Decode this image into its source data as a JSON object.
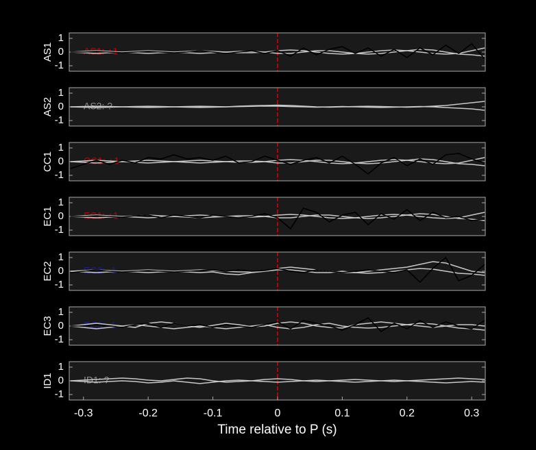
{
  "chart_data": [
    {
      "type": "line",
      "ylabel": "AS1",
      "annotation": "AS1: +1",
      "annotation_color": "#c00000",
      "vline": 0,
      "vline_color": "#dd0000",
      "xlim": [
        -0.322,
        0.321
      ],
      "ylim": [
        -1.4,
        1.4
      ],
      "yticks": [
        -1,
        0,
        1
      ],
      "x": [
        -0.32,
        -0.3,
        -0.28,
        -0.26,
        -0.24,
        -0.22,
        -0.2,
        -0.18,
        -0.16,
        -0.14,
        -0.12,
        -0.1,
        -0.08,
        -0.06,
        -0.04,
        -0.02,
        0,
        0.02,
        0.04,
        0.06,
        0.08,
        0.1,
        0.12,
        0.14,
        0.16,
        0.18,
        0.2,
        0.22,
        0.24,
        0.26,
        0.28,
        0.3,
        0.32
      ],
      "series": [
        {
          "color": "#c8c8c8",
          "values": [
            0,
            0.05,
            0.1,
            0.05,
            0,
            -0.05,
            -0.1,
            -0.05,
            0,
            0.05,
            0.1,
            0.05,
            0,
            -0.05,
            -0.05,
            0,
            0.1,
            0.15,
            0.1,
            0,
            -0.1,
            -0.15,
            -0.1,
            0,
            0.1,
            0.15,
            0.1,
            0,
            -0.1,
            -0.15,
            -0.1,
            0.1,
            0.3
          ]
        },
        {
          "color": "#c8c8c8",
          "values": [
            0,
            -0.05,
            -0.1,
            -0.05,
            0,
            0.05,
            0.1,
            0.05,
            0,
            -0.05,
            -0.1,
            -0.05,
            0,
            0.05,
            0.05,
            0,
            -0.1,
            -0.1,
            0,
            0.1,
            0.1,
            0,
            -0.1,
            -0.15,
            -0.1,
            0,
            0.1,
            0.2,
            0.15,
            0,
            -0.15,
            -0.2,
            -0.3
          ]
        },
        {
          "color": "#000000",
          "values": [
            0,
            0,
            0.05,
            0,
            -0.05,
            0,
            0.05,
            0,
            -0.05,
            0,
            0.1,
            0,
            -0.1,
            0,
            0.1,
            -0.1,
            0.1,
            -0.3,
            0.3,
            -0.2,
            0.2,
            0.4,
            -0.1,
            0.3,
            -0.3,
            0.2,
            -0.4,
            0.3,
            -0.2,
            0.5,
            -0.1,
            0.6,
            -0.5
          ]
        }
      ]
    },
    {
      "type": "line",
      "ylabel": "AS2",
      "annotation": "AS2: ?",
      "annotation_color": "#8c8c8c",
      "vline": 0,
      "vline_color": "#dd0000",
      "xlim": [
        -0.322,
        0.321
      ],
      "ylim": [
        -1.4,
        1.4
      ],
      "yticks": [
        -1,
        0,
        1
      ],
      "x": [
        -0.32,
        -0.3,
        -0.28,
        -0.26,
        -0.24,
        -0.22,
        -0.2,
        -0.18,
        -0.16,
        -0.14,
        -0.12,
        -0.1,
        -0.08,
        -0.06,
        -0.04,
        -0.02,
        0,
        0.02,
        0.04,
        0.06,
        0.08,
        0.1,
        0.12,
        0.14,
        0.16,
        0.18,
        0.2,
        0.22,
        0.24,
        0.26,
        0.28,
        0.3,
        0.32
      ],
      "series": [
        {
          "color": "#c8c8c8",
          "values": [
            0,
            0.02,
            0.04,
            0.02,
            0,
            -0.02,
            -0.04,
            -0.02,
            0,
            0.02,
            0.04,
            0.02,
            0,
            0.05,
            0.08,
            0.1,
            0.12,
            0.1,
            0.05,
            0,
            -0.02,
            0,
            0.02,
            0.04,
            0.02,
            0,
            -0.02,
            0,
            0.05,
            0.1,
            0.2,
            0.3,
            0.4
          ]
        },
        {
          "color": "#c8c8c8",
          "values": [
            0,
            -0.02,
            -0.04,
            -0.02,
            0,
            0.02,
            0.04,
            0.02,
            0,
            -0.02,
            -0.04,
            -0.02,
            0,
            0.02,
            0.04,
            0.06,
            0.05,
            0.02,
            0,
            -0.02,
            0,
            0.02,
            0,
            -0.02,
            -0.04,
            -0.02,
            0,
            0.02,
            0,
            -0.05,
            -0.1,
            -0.15,
            -0.25
          ]
        }
      ]
    },
    {
      "type": "line",
      "ylabel": "CC1",
      "annotation": "CC1: +1",
      "annotation_color": "#c00000",
      "vline": 0,
      "vline_color": "#dd0000",
      "xlim": [
        -0.322,
        0.321
      ],
      "ylim": [
        -1.4,
        1.4
      ],
      "yticks": [
        -1,
        0,
        1
      ],
      "x": [
        -0.32,
        -0.3,
        -0.28,
        -0.26,
        -0.24,
        -0.22,
        -0.2,
        -0.18,
        -0.16,
        -0.14,
        -0.12,
        -0.1,
        -0.08,
        -0.06,
        -0.04,
        -0.02,
        0,
        0.02,
        0.04,
        0.06,
        0.08,
        0.1,
        0.12,
        0.14,
        0.16,
        0.18,
        0.2,
        0.22,
        0.24,
        0.26,
        0.28,
        0.3,
        0.32
      ],
      "series": [
        {
          "color": "#c8c8c8",
          "values": [
            0,
            0.05,
            0.1,
            0.05,
            0,
            -0.05,
            -0.1,
            -0.05,
            0,
            0.05,
            0.1,
            0.05,
            0,
            -0.05,
            -0.05,
            0,
            0.1,
            0.15,
            0.1,
            0,
            -0.1,
            -0.15,
            -0.1,
            0,
            0.1,
            0.15,
            0.1,
            0,
            -0.1,
            -0.15,
            -0.1,
            0.1,
            0.3
          ]
        },
        {
          "color": "#c8c8c8",
          "values": [
            0,
            -0.05,
            -0.1,
            -0.05,
            0,
            0.05,
            0.1,
            0.05,
            0,
            -0.05,
            -0.1,
            -0.05,
            0,
            0.05,
            0.05,
            0,
            -0.1,
            -0.1,
            0,
            0.1,
            0.1,
            0,
            -0.1,
            -0.15,
            -0.1,
            0,
            0.1,
            0.2,
            0.15,
            0,
            -0.15,
            -0.2,
            -0.3
          ]
        },
        {
          "color": "#000000",
          "values": [
            -0.5,
            -0.2,
            0.1,
            -0.2,
            0.1,
            -0.1,
            0.3,
            0.2,
            0.5,
            0.2,
            0.3,
            0.1,
            0.4,
            -0.1,
            0,
            0.4,
            0.1,
            -0.2,
            0.1,
            0.3,
            -0.1,
            0.4,
            -0.2,
            -0.9,
            -0.1,
            0.3,
            -0.3,
            0.2,
            -0.2,
            0.5,
            0.6,
            0.2,
            -0.1
          ]
        }
      ]
    },
    {
      "type": "line",
      "ylabel": "EC1",
      "annotation": "EC1: +1",
      "annotation_color": "#c00000",
      "vline": 0,
      "vline_color": "#dd0000",
      "xlim": [
        -0.322,
        0.321
      ],
      "ylim": [
        -1.4,
        1.4
      ],
      "yticks": [
        -1,
        0,
        1
      ],
      "x": [
        -0.32,
        -0.3,
        -0.28,
        -0.26,
        -0.24,
        -0.22,
        -0.2,
        -0.18,
        -0.16,
        -0.14,
        -0.12,
        -0.1,
        -0.08,
        -0.06,
        -0.04,
        -0.02,
        0,
        0.02,
        0.04,
        0.06,
        0.08,
        0.1,
        0.12,
        0.14,
        0.16,
        0.18,
        0.2,
        0.22,
        0.24,
        0.26,
        0.28,
        0.3,
        0.32
      ],
      "series": [
        {
          "color": "#c8c8c8",
          "values": [
            0,
            0.05,
            0.1,
            0.05,
            0,
            -0.05,
            -0.1,
            -0.05,
            0,
            0.05,
            0.1,
            0.05,
            0,
            -0.05,
            -0.05,
            0,
            0.1,
            0.15,
            0.1,
            0,
            -0.1,
            -0.15,
            -0.1,
            0,
            0.1,
            0.15,
            0.1,
            0,
            -0.1,
            -0.15,
            -0.1,
            0.1,
            0.3
          ]
        },
        {
          "color": "#c8c8c8",
          "values": [
            0,
            -0.05,
            -0.1,
            -0.05,
            0,
            0.05,
            0.1,
            0.05,
            0,
            -0.05,
            -0.1,
            -0.05,
            0,
            0.05,
            0.05,
            0,
            -0.1,
            -0.1,
            0,
            0.1,
            0.1,
            0,
            -0.1,
            -0.15,
            -0.1,
            0,
            0.1,
            0.2,
            0.15,
            0,
            -0.15,
            -0.2,
            -0.3
          ]
        },
        {
          "color": "#000000",
          "values": [
            0,
            0,
            0.05,
            0,
            -0.05,
            0.05,
            0.1,
            -0.1,
            0.1,
            0,
            -0.1,
            0.1,
            0,
            -0.1,
            0,
            0.2,
            -0.1,
            -0.9,
            0.6,
            0.3,
            -0.4,
            0.1,
            0.3,
            -0.6,
            0.2,
            -0.2,
            0.5,
            -0.3,
            0.3,
            -0.1,
            0,
            -0.3,
            -0.2
          ]
        }
      ]
    },
    {
      "type": "line",
      "ylabel": "EC2",
      "annotation": "EC2: -1",
      "annotation_color": "#1a1a9c",
      "vline": 0,
      "vline_color": "#dd0000",
      "xlim": [
        -0.322,
        0.321
      ],
      "ylim": [
        -1.4,
        1.4
      ],
      "yticks": [
        -1,
        0,
        1
      ],
      "x": [
        -0.32,
        -0.3,
        -0.28,
        -0.26,
        -0.24,
        -0.22,
        -0.2,
        -0.18,
        -0.16,
        -0.14,
        -0.12,
        -0.1,
        -0.08,
        -0.06,
        -0.04,
        -0.02,
        0,
        0.02,
        0.04,
        0.06,
        0.08,
        0.1,
        0.12,
        0.14,
        0.16,
        0.18,
        0.2,
        0.22,
        0.24,
        0.26,
        0.28,
        0.3,
        0.32
      ],
      "series": [
        {
          "color": "#c8c8c8",
          "values": [
            0,
            0.05,
            0.1,
            0.05,
            0,
            -0.05,
            -0.1,
            -0.05,
            0,
            0.05,
            0.1,
            0.05,
            0,
            -0.05,
            -0.05,
            0,
            0.2,
            0.3,
            0.2,
            0.1,
            0,
            -0.1,
            -0.1,
            0,
            0.1,
            0.2,
            0.3,
            0.5,
            0.7,
            0.6,
            0.3,
            0,
            -0.1
          ]
        },
        {
          "color": "#c8c8c8",
          "values": [
            0,
            -0.05,
            -0.1,
            -0.05,
            0,
            0.05,
            0.1,
            0.05,
            0,
            -0.05,
            -0.1,
            -0.05,
            -0.2,
            -0.25,
            -0.1,
            0,
            0.1,
            0.1,
            0,
            -0.1,
            -0.1,
            0,
            -0.1,
            -0.15,
            -0.1,
            0,
            0.1,
            0.2,
            0.15,
            0,
            -0.15,
            -0.2,
            -0.3
          ]
        },
        {
          "color": "#000000",
          "values": [
            -0.1,
            0,
            0.1,
            0,
            -0.05,
            0,
            0.05,
            0,
            -0.05,
            0,
            0.05,
            0.1,
            0,
            0.1,
            0,
            0.05,
            0.2,
            0,
            -0.1,
            0.1,
            0,
            -0.1,
            0,
            0.1,
            0,
            -0.1,
            0.1,
            -0.8,
            0.2,
            1.0,
            -0.7,
            -0.3,
            0.5
          ]
        }
      ]
    },
    {
      "type": "line",
      "ylabel": "EC3",
      "annotation": "EC3: -1",
      "annotation_color": "#1a1a9c",
      "vline": 0,
      "vline_color": "#dd0000",
      "xlim": [
        -0.322,
        0.321
      ],
      "ylim": [
        -1.4,
        1.4
      ],
      "yticks": [
        -1,
        0,
        1
      ],
      "x": [
        -0.32,
        -0.3,
        -0.28,
        -0.26,
        -0.24,
        -0.22,
        -0.2,
        -0.18,
        -0.16,
        -0.14,
        -0.12,
        -0.1,
        -0.08,
        -0.06,
        -0.04,
        -0.02,
        0,
        0.02,
        0.04,
        0.06,
        0.08,
        0.1,
        0.12,
        0.14,
        0.16,
        0.18,
        0.2,
        0.22,
        0.24,
        0.26,
        0.28,
        0.3,
        0.32
      ],
      "series": [
        {
          "color": "#c8c8c8",
          "values": [
            0,
            0.1,
            0.2,
            0.1,
            0,
            -0.1,
            0.2,
            0.3,
            0.2,
            0,
            -0.1,
            0.05,
            0.2,
            0.1,
            -0.05,
            0,
            0.2,
            0.3,
            0.2,
            0,
            -0.1,
            -0.15,
            0.1,
            0.2,
            0.3,
            0.2,
            0.1,
            0,
            -0.1,
            0,
            0.1,
            0.1,
            0
          ]
        },
        {
          "color": "#c8c8c8",
          "values": [
            0,
            -0.1,
            -0.2,
            -0.1,
            0,
            0.1,
            0,
            -0.1,
            -0.2,
            -0.1,
            0,
            -0.1,
            -0.2,
            -0.1,
            0,
            0.1,
            -0.1,
            -0.2,
            -0.1,
            0.1,
            0.2,
            0,
            -0.1,
            -0.15,
            -0.1,
            0,
            0.1,
            0.2,
            0.15,
            0,
            -0.15,
            -0.2,
            -0.3
          ]
        },
        {
          "color": "#000000",
          "values": [
            0,
            0,
            0.1,
            0,
            -0.1,
            0.1,
            0.2,
            -0.1,
            0.2,
            0,
            0.1,
            -0.1,
            0.1,
            0,
            -0.1,
            0.1,
            0.3,
            -0.2,
            0.4,
            0.2,
            0,
            -0.3,
            0.1,
            0.6,
            -0.4,
            0.2,
            -0.2,
            0.4,
            -0.1,
            0.3,
            0,
            -0.2,
            0.4
          ]
        }
      ]
    },
    {
      "type": "line",
      "ylabel": "ID1",
      "annotation": "ID1: ?",
      "annotation_color": "#8c8c8c",
      "vline": 0,
      "vline_color": "#dd0000",
      "xlabel": "Time relative to P (s)",
      "xlim": [
        -0.322,
        0.321
      ],
      "ylim": [
        -1.4,
        1.4
      ],
      "yticks": [
        -1,
        0,
        1
      ],
      "xticks": [
        -0.3,
        -0.2,
        -0.1,
        0,
        0.1,
        0.2,
        0.3
      ],
      "x": [
        -0.32,
        -0.3,
        -0.28,
        -0.26,
        -0.24,
        -0.22,
        -0.2,
        -0.18,
        -0.16,
        -0.14,
        -0.12,
        -0.1,
        -0.08,
        -0.06,
        -0.04,
        -0.02,
        0,
        0.02,
        0.04,
        0.06,
        0.08,
        0.1,
        0.12,
        0.14,
        0.16,
        0.18,
        0.2,
        0.22,
        0.24,
        0.26,
        0.28,
        0.3,
        0.32
      ],
      "series": [
        {
          "color": "#c8c8c8",
          "values": [
            0,
            0.05,
            0.1,
            0.15,
            0.2,
            0.15,
            0.05,
            0,
            0.1,
            0.2,
            0.15,
            0,
            -0.1,
            -0.05,
            0,
            0.1,
            0.15,
            0.1,
            0,
            -0.05,
            0,
            0.05,
            0.1,
            0.05,
            0,
            -0.05,
            0,
            0.05,
            0.1,
            0.15,
            0.2,
            0.15,
            0.1
          ]
        },
        {
          "color": "#c8c8c8",
          "values": [
            0,
            -0.05,
            -0.1,
            -0.05,
            0,
            -0.05,
            -0.15,
            -0.1,
            0,
            -0.1,
            -0.2,
            -0.1,
            0,
            0.05,
            0,
            -0.05,
            -0.1,
            -0.05,
            0,
            0.05,
            0,
            -0.05,
            -0.1,
            -0.05,
            0,
            0.05,
            0,
            -0.05,
            -0.1,
            -0.15,
            -0.1,
            -0.05,
            -0.1
          ]
        }
      ]
    }
  ]
}
